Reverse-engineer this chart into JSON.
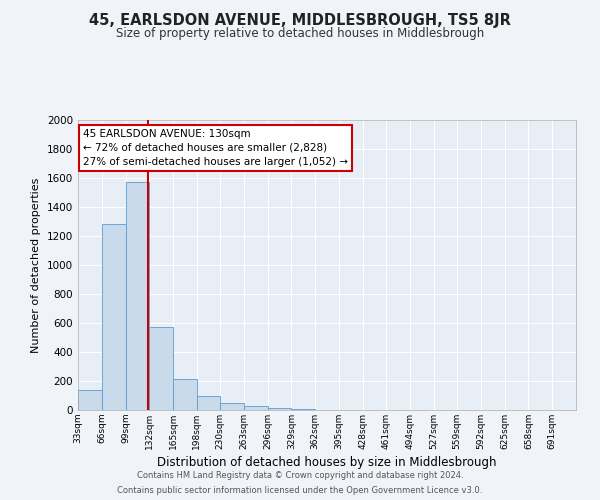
{
  "title": "45, EARLSDON AVENUE, MIDDLESBROUGH, TS5 8JR",
  "subtitle": "Size of property relative to detached houses in Middlesbrough",
  "xlabel": "Distribution of detached houses by size in Middlesbrough",
  "ylabel": "Number of detached properties",
  "bin_labels": [
    "33sqm",
    "66sqm",
    "99sqm",
    "132sqm",
    "165sqm",
    "198sqm",
    "230sqm",
    "263sqm",
    "296sqm",
    "329sqm",
    "362sqm",
    "395sqm",
    "428sqm",
    "461sqm",
    "494sqm",
    "527sqm",
    "559sqm",
    "592sqm",
    "625sqm",
    "658sqm",
    "691sqm"
  ],
  "bar_heights": [
    140,
    1280,
    1570,
    570,
    215,
    100,
    50,
    30,
    15,
    5,
    3,
    2,
    1,
    1,
    1,
    1,
    0,
    0,
    0,
    0,
    0
  ],
  "bar_color": "#c9daea",
  "bar_edge_color": "#5b9bd5",
  "plot_bg_color": "#e8eef5",
  "fig_bg_color": "#f0f4f8",
  "grid_color": "#ffffff",
  "annotation_line1": "45 EARLSDON AVENUE: 130sqm",
  "annotation_line2": "← 72% of detached houses are smaller (2,828)",
  "annotation_line3": "27% of semi-detached houses are larger (1,052) →",
  "vline_x": 130,
  "vline_color": "#cc0000",
  "ylim": [
    0,
    2000
  ],
  "yticks": [
    0,
    200,
    400,
    600,
    800,
    1000,
    1200,
    1400,
    1600,
    1800,
    2000
  ],
  "footer_line1": "Contains HM Land Registry data © Crown copyright and database right 2024.",
  "footer_line2": "Contains public sector information licensed under the Open Government Licence v3.0.",
  "bin_edges": [
    33,
    66,
    99,
    132,
    165,
    198,
    230,
    263,
    296,
    329,
    362,
    395,
    428,
    461,
    494,
    527,
    559,
    592,
    625,
    658,
    691,
    724
  ]
}
